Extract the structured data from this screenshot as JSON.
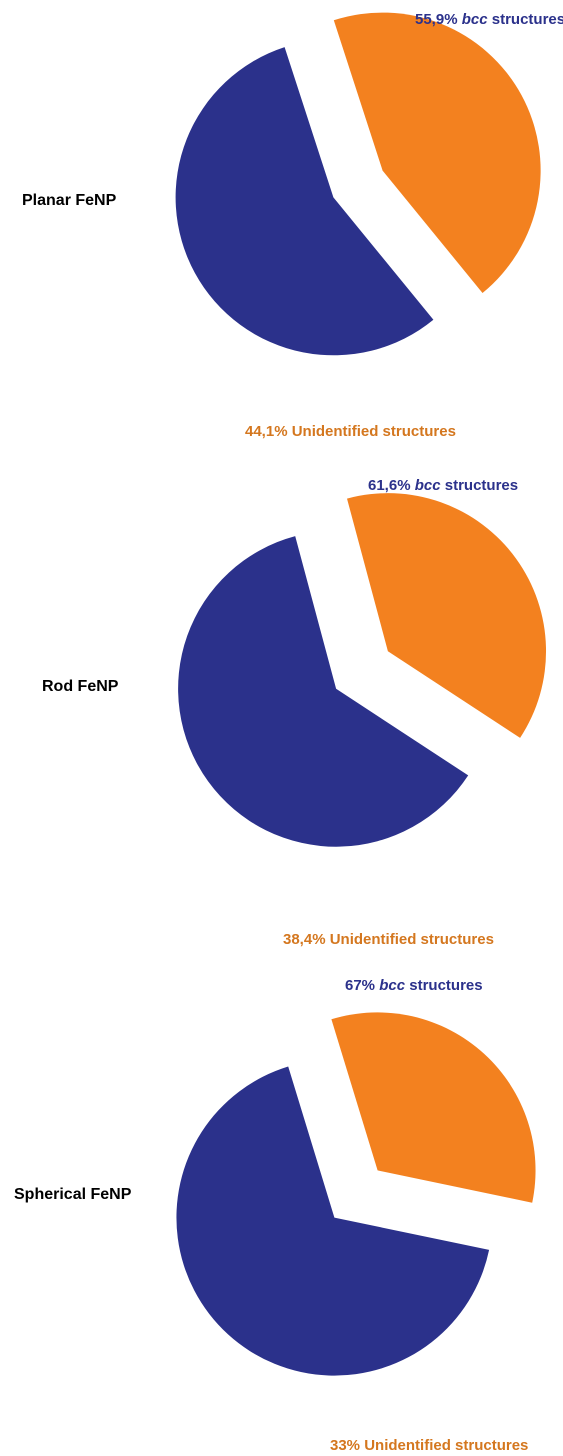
{
  "chart_data": [
    {
      "type": "pie",
      "title": "Planar FeNP",
      "slices": [
        {
          "percent_text": "55,9%",
          "name_italic": "bcc",
          "name_rest": " structures",
          "value": 55.9,
          "color": "#2b318b"
        },
        {
          "percent_text": "44,1%",
          "name_italic": "",
          "name_rest": " Unidentified structures",
          "value": 44.1,
          "color": "#f3811f"
        }
      ]
    },
    {
      "type": "pie",
      "title": "Rod FeNP",
      "slices": [
        {
          "percent_text": "61,6%",
          "name_italic": "bcc",
          "name_rest": " structures",
          "value": 61.6,
          "color": "#2b318b"
        },
        {
          "percent_text": "38,4%",
          "name_italic": "",
          "name_rest": " Unidentified structures",
          "value": 38.4,
          "color": "#f3811f"
        }
      ]
    },
    {
      "type": "pie",
      "title": "Spherical FeNP",
      "slices": [
        {
          "percent_text": "67%",
          "name_italic": "bcc",
          "name_rest": " structures",
          "value": 67,
          "color": "#2b318b"
        },
        {
          "percent_text": "33%",
          "name_italic": "",
          "name_rest": " Unidentified structures",
          "value": 33,
          "color": "#f3811f"
        }
      ]
    }
  ]
}
